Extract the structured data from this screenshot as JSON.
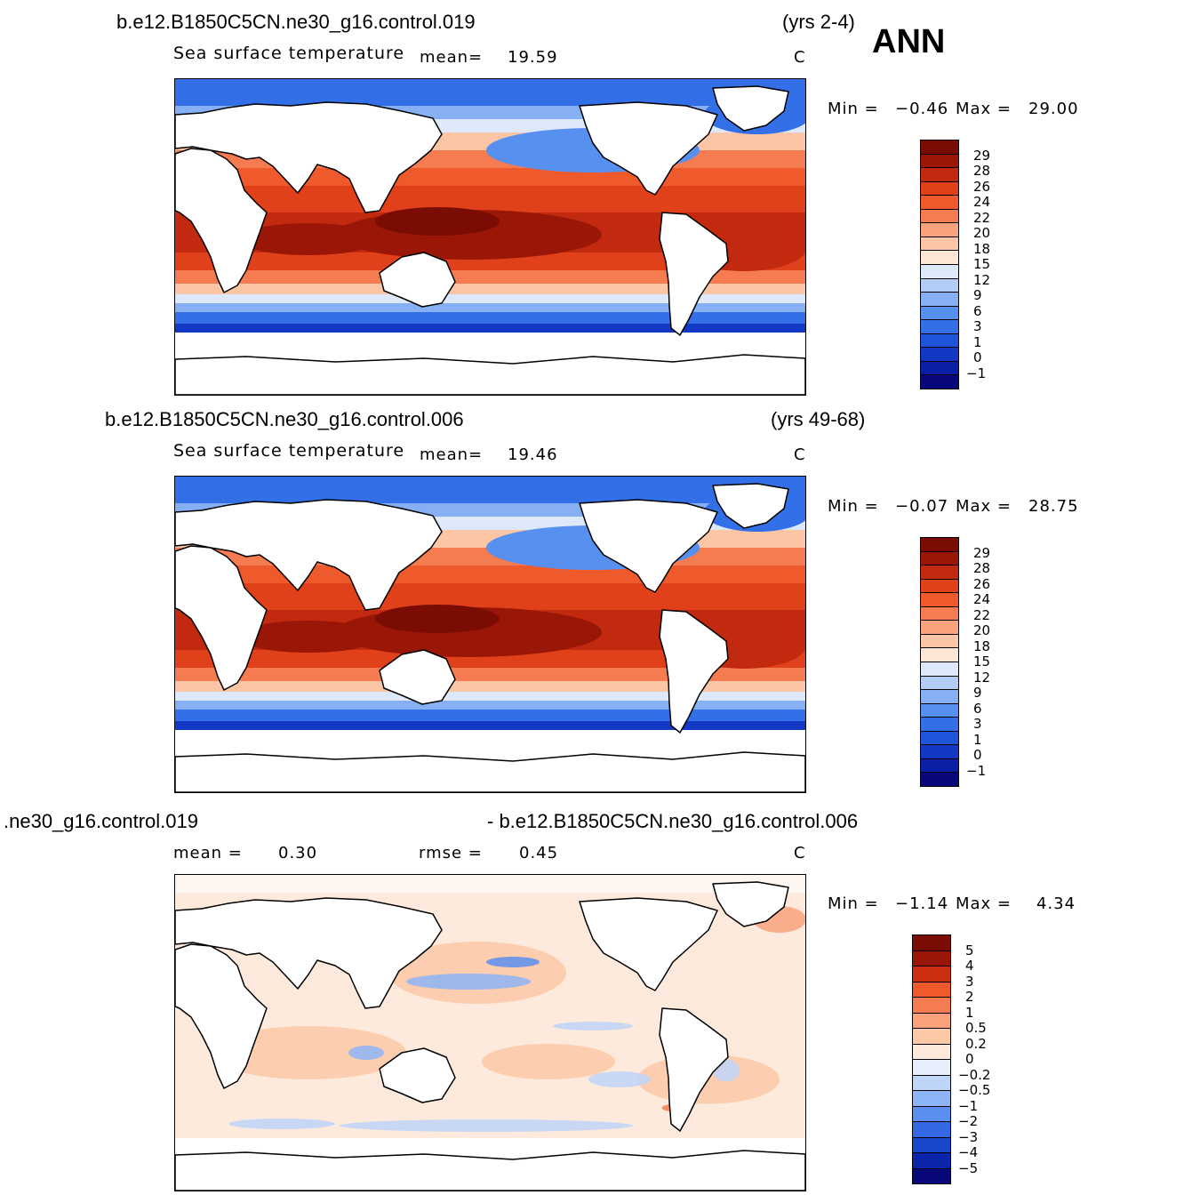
{
  "season": "ANN",
  "colors": {
    "sst": [
      "#08087a",
      "#0a1fa6",
      "#1238c4",
      "#1f55da",
      "#3370e8",
      "#5890f0",
      "#86aff4",
      "#b3cdf6",
      "#dde9fa",
      "#fde6d6",
      "#fcc6a6",
      "#f9a27c",
      "#f57c50",
      "#ee5a2c",
      "#e0401a",
      "#c22a10",
      "#9a1606",
      "#7a0c04"
    ],
    "diff": [
      "#08087a",
      "#0a24aa",
      "#1a46cc",
      "#3368e4",
      "#5a8ef0",
      "#8db4f6",
      "#bed5f8",
      "#e6effb",
      "#fdeadd",
      "#fcc9a7",
      "#f9a27c",
      "#f57c50",
      "#ee5a2c",
      "#cc3010",
      "#9a1606",
      "#7a0c04"
    ]
  },
  "panels": [
    {
      "case": "b.e12.B1850C5CN.ne30_g16.control.019",
      "years": "(yrs 2-4)",
      "variable": "Sea surface temperature",
      "mean_label": "mean=",
      "mean_value": "19.59",
      "units": "C",
      "min_label": "Min =",
      "min_value": "−0.46",
      "max_label": "Max =",
      "max_value": "29.00",
      "levels": [
        "29",
        "28",
        "26",
        "24",
        "22",
        "20",
        "18",
        "15",
        "12",
        "9",
        "6",
        "3",
        "1",
        "0",
        "−1"
      ]
    },
    {
      "case": "b.e12.B1850C5CN.ne30_g16.control.006",
      "years": "(yrs 49-68)",
      "variable": "Sea surface temperature",
      "mean_label": "mean=",
      "mean_value": "19.46",
      "units": "C",
      "min_label": "Min =",
      "min_value": "−0.07",
      "max_label": "Max =",
      "max_value": "28.75",
      "levels": [
        "29",
        "28",
        "26",
        "24",
        "22",
        "20",
        "18",
        "15",
        "12",
        "9",
        "6",
        "3",
        "1",
        "0",
        "−1"
      ]
    },
    {
      "case_left": ".ne30_g16.control.019",
      "case_right": "- b.e12.B1850C5CN.ne30_g16.control.006",
      "mean_label": "mean =",
      "mean_value": "0.30",
      "rmse_label": "rmse =",
      "rmse_value": "0.45",
      "units": "C",
      "min_label": "Min =",
      "min_value": "−1.14",
      "max_label": "Max =",
      "max_value": "4.34",
      "levels": [
        "5",
        "4",
        "3",
        "2",
        "1",
        "0.5",
        "0.2",
        "0",
        "−0.2",
        "−0.5",
        "−1",
        "−2",
        "−3",
        "−4",
        "−5"
      ]
    }
  ]
}
